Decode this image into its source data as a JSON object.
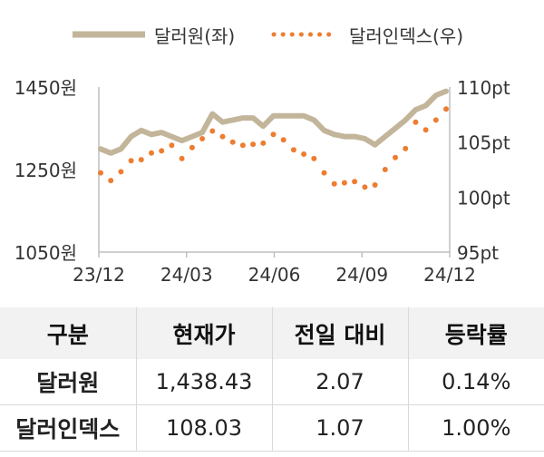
{
  "chart_data": {
    "type": "line",
    "legend_position": "top",
    "grid": false,
    "x_ticks": [
      "23/12",
      "24/03",
      "24/06",
      "24/09",
      "24/12"
    ],
    "y_left": {
      "ticks": [
        "1450원",
        "1250원",
        "1050원"
      ],
      "range": [
        1050,
        1450
      ]
    },
    "y_right": {
      "ticks": [
        "110pt",
        "105pt",
        "100pt",
        "95pt"
      ],
      "range": [
        95,
        110
      ]
    },
    "series": [
      {
        "name": "달러원(좌)",
        "axis": "left",
        "style": "solid",
        "color": "#c2b59a",
        "x": [
          "23/12",
          "23/12",
          "24/01",
          "24/01",
          "24/01",
          "24/02",
          "24/02",
          "24/02",
          "24/03",
          "24/03",
          "24/03",
          "24/04",
          "24/04",
          "24/04",
          "24/05",
          "24/05",
          "24/05",
          "24/06",
          "24/06",
          "24/07",
          "24/07",
          "24/07",
          "24/08",
          "24/08",
          "24/08",
          "24/09",
          "24/09",
          "24/09",
          "24/10",
          "24/10",
          "24/10",
          "24/11",
          "24/11",
          "24/12",
          "24/12"
        ],
        "values": [
          1300,
          1290,
          1300,
          1330,
          1345,
          1335,
          1340,
          1330,
          1320,
          1330,
          1340,
          1385,
          1365,
          1370,
          1375,
          1375,
          1355,
          1380,
          1380,
          1380,
          1380,
          1370,
          1345,
          1335,
          1330,
          1330,
          1325,
          1310,
          1330,
          1350,
          1370,
          1395,
          1405,
          1430,
          1440
        ]
      },
      {
        "name": "달러인덱스(우)",
        "axis": "right",
        "style": "dotted",
        "color": "#ed7d31",
        "x": [
          "23/12",
          "23/12",
          "24/01",
          "24/01",
          "24/01",
          "24/02",
          "24/02",
          "24/02",
          "24/03",
          "24/03",
          "24/03",
          "24/04",
          "24/04",
          "24/04",
          "24/05",
          "24/05",
          "24/05",
          "24/06",
          "24/06",
          "24/07",
          "24/07",
          "24/07",
          "24/08",
          "24/08",
          "24/08",
          "24/09",
          "24/09",
          "24/09",
          "24/10",
          "24/10",
          "24/10",
          "24/11",
          "24/11",
          "24/12",
          "24/12"
        ],
        "values": [
          102.2,
          101.5,
          102.3,
          103.3,
          103.4,
          104.0,
          104.2,
          104.7,
          103.5,
          104.5,
          105.3,
          106.0,
          105.5,
          105.0,
          104.7,
          104.8,
          104.9,
          105.7,
          105.2,
          104.3,
          103.9,
          103.5,
          102.2,
          101.2,
          101.3,
          101.4,
          100.9,
          101.1,
          102.5,
          103.6,
          104.4,
          106.8,
          106.1,
          107.0,
          108.0
        ]
      }
    ]
  },
  "table": {
    "headers": [
      "구분",
      "현재가",
      "전일 대비",
      "등락률"
    ],
    "rows": [
      [
        "달러원",
        "1,438.43",
        "2.07",
        "0.14%"
      ],
      [
        "달러인덱스",
        "108.03",
        "1.07",
        "1.00%"
      ]
    ]
  }
}
